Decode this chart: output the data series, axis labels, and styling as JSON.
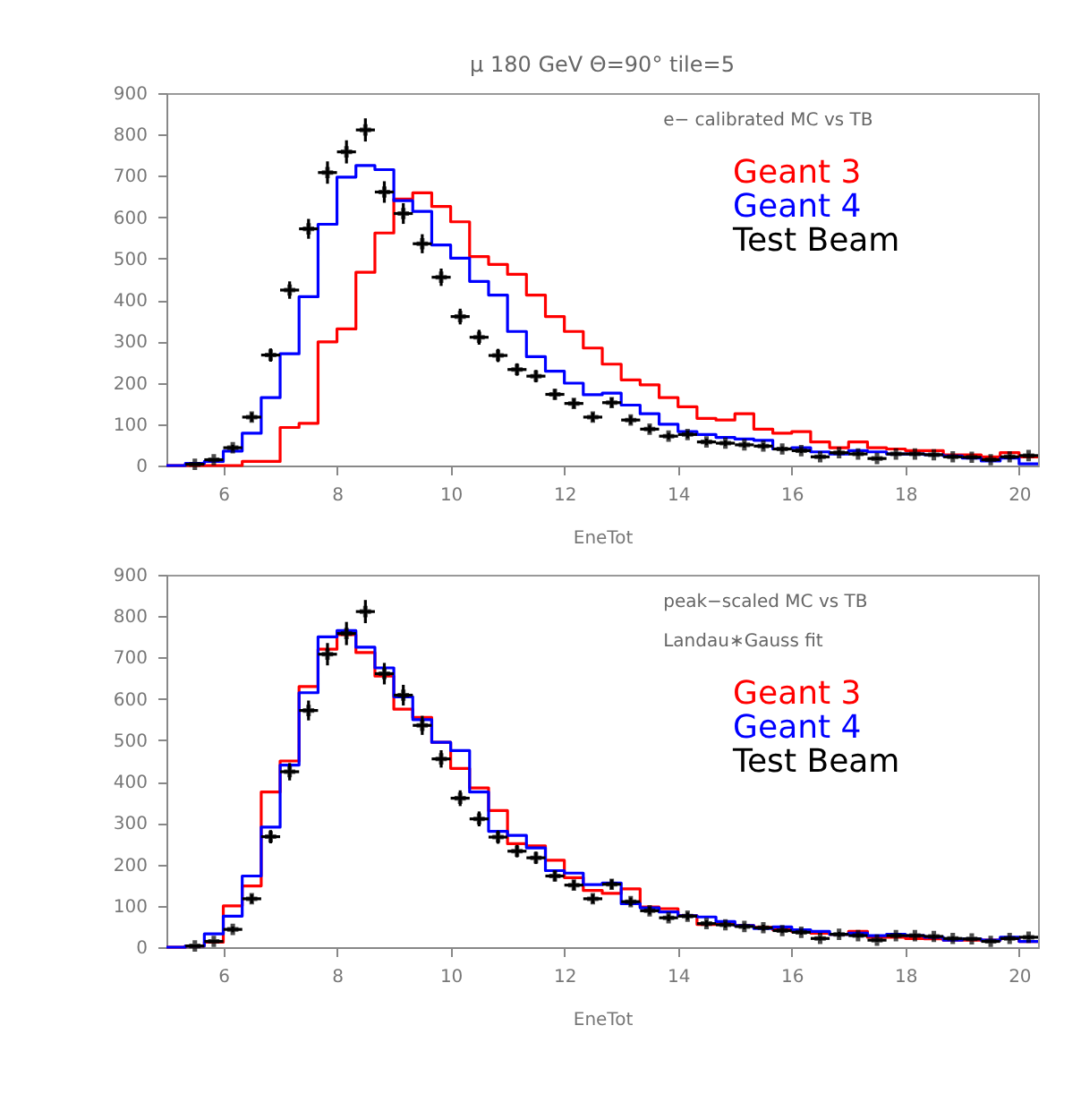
{
  "chart_data": [
    {
      "type": "histogram",
      "title": "μ 180 GeV Θ=90° tile=5",
      "xlabel": "EneTot",
      "annotations": [
        "e− calibrated MC vs TB"
      ],
      "legend": "top right",
      "grid": false,
      "xlim": [
        5,
        20.333
      ],
      "xticks": [
        6,
        8,
        10,
        12,
        14,
        16,
        18,
        20
      ],
      "ylim": [
        0,
        900
      ],
      "yticks": [
        0,
        100,
        200,
        300,
        400,
        500,
        600,
        700,
        800,
        900
      ],
      "bins": [
        5,
        5.333,
        5.667,
        6,
        6.333,
        6.667,
        7,
        7.333,
        7.667,
        8,
        8.333,
        8.667,
        9,
        9.333,
        9.667,
        10,
        10.333,
        10.667,
        11,
        11.333,
        11.667,
        12,
        12.333,
        12.667,
        13,
        13.333,
        13.667,
        14,
        14.333,
        14.667,
        15,
        15.333,
        15.667,
        16,
        16.333,
        16.667,
        17,
        17.333,
        17.667,
        18,
        18.333,
        18.667,
        19,
        19.333,
        19.667,
        20,
        20.333
      ],
      "series": [
        {
          "name": "Geant 3",
          "color": "#ff0000",
          "values": [
            0,
            0,
            0,
            0,
            10,
            10,
            92,
            102,
            299,
            330,
            467,
            562,
            644,
            659,
            626,
            589,
            505,
            486,
            462,
            412,
            360,
            324,
            284,
            245,
            207,
            195,
            164,
            142,
            114,
            110,
            125,
            88,
            78,
            82,
            57,
            43,
            57,
            43,
            40,
            36,
            36,
            26,
            26,
            21,
            31,
            21
          ]
        },
        {
          "name": "Geant 4",
          "color": "#0000ff",
          "values": [
            0,
            5,
            10,
            35,
            78,
            164,
            270,
            408,
            583,
            697,
            725,
            715,
            640,
            614,
            533,
            501,
            445,
            412,
            324,
            263,
            228,
            199,
            171,
            175,
            146,
            125,
            100,
            82,
            75,
            68,
            64,
            61,
            40,
            43,
            33,
            28,
            36,
            33,
            28,
            28,
            26,
            23,
            18,
            11,
            18,
            4
          ]
        },
        {
          "name": "Test Beam",
          "color": "#000000",
          "type": "scatter",
          "marker": "cross",
          "x": [
            5.5,
            5.833,
            6.167,
            6.5,
            6.833,
            7.167,
            7.5,
            7.833,
            8.167,
            8.5,
            8.833,
            9.167,
            9.5,
            9.833,
            10.167,
            10.5,
            10.833,
            11.167,
            11.5,
            11.833,
            12.167,
            12.5,
            12.833,
            13.167,
            13.5,
            13.833,
            14.167,
            14.5,
            14.833,
            15.167,
            15.5,
            15.833,
            16.167,
            16.5,
            16.833,
            17.167,
            17.5,
            17.833,
            18.167,
            18.5,
            18.833,
            19.167,
            19.5,
            19.833,
            20.167
          ],
          "values": [
            3,
            14,
            43,
            117,
            267,
            424,
            572,
            708,
            758,
            811,
            661,
            609,
            536,
            455,
            360,
            310,
            266,
            232,
            216,
            172,
            150,
            117,
            152,
            110,
            88,
            71,
            75,
            57,
            54,
            50,
            47,
            40,
            36,
            21,
            31,
            28,
            17,
            28,
            28,
            26,
            21,
            20,
            14,
            21,
            24
          ],
          "errors": [
            2,
            4,
            7,
            11,
            16,
            21,
            24,
            27,
            28,
            28,
            26,
            25,
            23,
            21,
            19,
            18,
            16,
            15,
            15,
            13,
            12,
            11,
            12,
            10,
            9,
            8,
            9,
            8,
            7,
            7,
            7,
            6,
            6,
            5,
            6,
            5,
            4,
            5,
            5,
            5,
            5,
            4,
            4,
            5,
            5
          ],
          "xerrors": [
            0.167,
            0.167,
            0.167,
            0.167,
            0.167,
            0.167,
            0.167,
            0.167,
            0.167,
            0.167,
            0.167,
            0.167,
            0.167,
            0.167,
            0.167,
            0.167,
            0.167,
            0.167,
            0.167,
            0.167,
            0.167,
            0.167,
            0.167,
            0.167,
            0.167,
            0.167,
            0.167,
            0.167,
            0.167,
            0.167,
            0.167,
            0.167,
            0.167,
            0.167,
            0.167,
            0.167,
            0.167,
            0.167,
            0.167,
            0.167,
            0.167,
            0.167,
            0.167,
            0.167,
            0.167
          ]
        }
      ]
    },
    {
      "type": "histogram",
      "xlabel": "EneTot",
      "annotations": [
        "peak−scaled MC vs TB",
        "Landau∗Gauss fit"
      ],
      "legend": "top right",
      "grid": false,
      "xlim": [
        5,
        20.333
      ],
      "xticks": [
        6,
        8,
        10,
        12,
        14,
        16,
        18,
        20
      ],
      "ylim": [
        0,
        900
      ],
      "yticks": [
        0,
        100,
        200,
        300,
        400,
        500,
        600,
        700,
        800,
        900
      ],
      "bins": [
        5,
        5.333,
        5.667,
        6,
        6.333,
        6.667,
        7,
        7.333,
        7.667,
        8,
        8.333,
        8.667,
        9,
        9.333,
        9.667,
        10,
        10.333,
        10.667,
        11,
        11.333,
        11.667,
        12,
        12.333,
        12.667,
        13,
        13.333,
        13.667,
        14,
        14.333,
        14.667,
        15,
        15.333,
        15.667,
        16,
        16.333,
        16.667,
        17,
        17.333,
        17.667,
        18,
        18.333,
        18.667,
        19,
        19.333,
        19.667,
        20,
        20.333
      ],
      "series": [
        {
          "name": "Geant 3",
          "color": "#ff0000",
          "values": [
            0,
            3,
            12,
            100,
            148,
            375,
            450,
            630,
            720,
            755,
            712,
            655,
            575,
            555,
            495,
            432,
            385,
            330,
            250,
            245,
            210,
            168,
            137,
            130,
            141,
            97,
            93,
            76,
            55,
            59,
            52,
            48,
            42,
            38,
            34,
            31,
            38,
            24,
            24,
            21,
            20,
            17,
            17,
            17,
            21,
            14
          ]
        },
        {
          "name": "Geant 4",
          "color": "#0000ff",
          "values": [
            0,
            3,
            32,
            75,
            172,
            290,
            440,
            615,
            750,
            765,
            725,
            675,
            605,
            550,
            495,
            475,
            375,
            280,
            270,
            240,
            185,
            179,
            151,
            155,
            105,
            95,
            85,
            76,
            73,
            62,
            52,
            45,
            49,
            42,
            38,
            31,
            34,
            28,
            31,
            28,
            24,
            17,
            20,
            17,
            24,
            14
          ]
        },
        {
          "name": "Test Beam",
          "color": "#000000",
          "type": "scatter",
          "marker": "cross",
          "x": [
            5.5,
            5.833,
            6.167,
            6.5,
            6.833,
            7.167,
            7.5,
            7.833,
            8.167,
            8.5,
            8.833,
            9.167,
            9.5,
            9.833,
            10.167,
            10.5,
            10.833,
            11.167,
            11.5,
            11.833,
            12.167,
            12.5,
            12.833,
            13.167,
            13.5,
            13.833,
            14.167,
            14.5,
            14.833,
            15.167,
            15.5,
            15.833,
            16.167,
            16.5,
            16.833,
            17.167,
            17.5,
            17.833,
            18.167,
            18.5,
            18.833,
            19.167,
            19.5,
            19.833,
            20.167
          ],
          "values": [
            3,
            14,
            43,
            117,
            267,
            424,
            572,
            708,
            758,
            811,
            661,
            609,
            536,
            455,
            360,
            310,
            266,
            232,
            216,
            172,
            150,
            117,
            152,
            110,
            88,
            71,
            75,
            57,
            54,
            50,
            47,
            40,
            36,
            21,
            31,
            28,
            17,
            28,
            28,
            26,
            21,
            20,
            14,
            21,
            24
          ],
          "errors": [
            2,
            4,
            7,
            11,
            16,
            21,
            24,
            27,
            28,
            28,
            26,
            25,
            23,
            21,
            19,
            18,
            16,
            15,
            15,
            13,
            12,
            11,
            12,
            10,
            9,
            8,
            9,
            8,
            7,
            7,
            7,
            6,
            6,
            5,
            6,
            5,
            4,
            5,
            5,
            5,
            5,
            4,
            4,
            5,
            5
          ],
          "xerrors": [
            0.167,
            0.167,
            0.167,
            0.167,
            0.167,
            0.167,
            0.167,
            0.167,
            0.167,
            0.167,
            0.167,
            0.167,
            0.167,
            0.167,
            0.167,
            0.167,
            0.167,
            0.167,
            0.167,
            0.167,
            0.167,
            0.167,
            0.167,
            0.167,
            0.167,
            0.167,
            0.167,
            0.167,
            0.167,
            0.167,
            0.167,
            0.167,
            0.167,
            0.167,
            0.167,
            0.167,
            0.167,
            0.167,
            0.167,
            0.167,
            0.167,
            0.167,
            0.167,
            0.167,
            0.167
          ]
        }
      ]
    }
  ]
}
